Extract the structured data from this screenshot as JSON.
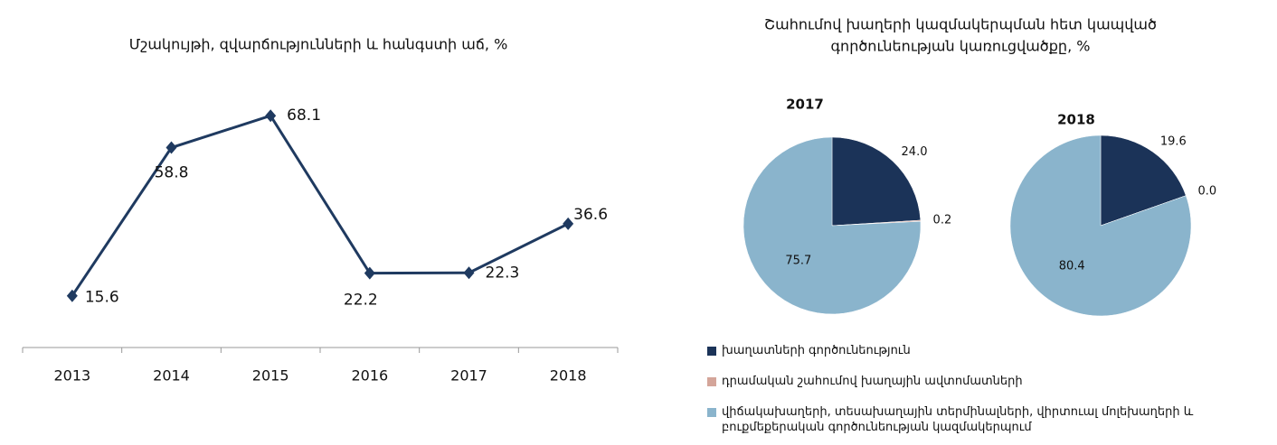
{
  "chart_data": [
    {
      "type": "line",
      "title": "Մշակույթի, զվարճությունների և  հանգստի աճ, %",
      "categories": [
        "2013",
        "2014",
        "2015",
        "2016",
        "2017",
        "2018"
      ],
      "values": [
        15.6,
        58.8,
        68.1,
        22.2,
        22.3,
        36.6
      ],
      "color": "#1f3a60",
      "ylim": [
        0,
        80
      ]
    },
    {
      "type": "pie",
      "title": [
        "Շահումով խաղերի կազմակերպման հետ կապված",
        "գործունեության կառուցվածքը, %"
      ],
      "series": [
        {
          "name": "խաղատների գործունեություն",
          "color": "#1b3358"
        },
        {
          "name": "դրամական շահումով խաղային ավտոմատների",
          "color": "#d4a59a"
        },
        {
          "name": "վիճակախաղերի, տեսախաղային տերմինալների, վիրտուալ մոլեխաղերի և բուքմեքերական գործունեության կազմակերպում",
          "color": "#8ab4cc"
        }
      ],
      "pies": [
        {
          "title": "2017",
          "values": [
            24.0,
            0.2,
            75.7
          ],
          "value_labels": [
            "24.0",
            "0.2",
            "75.7"
          ]
        },
        {
          "title": "2018",
          "values": [
            19.6,
            0.0,
            80.4
          ],
          "value_labels": [
            "19.6",
            "0.0",
            "80.4"
          ]
        }
      ]
    }
  ]
}
